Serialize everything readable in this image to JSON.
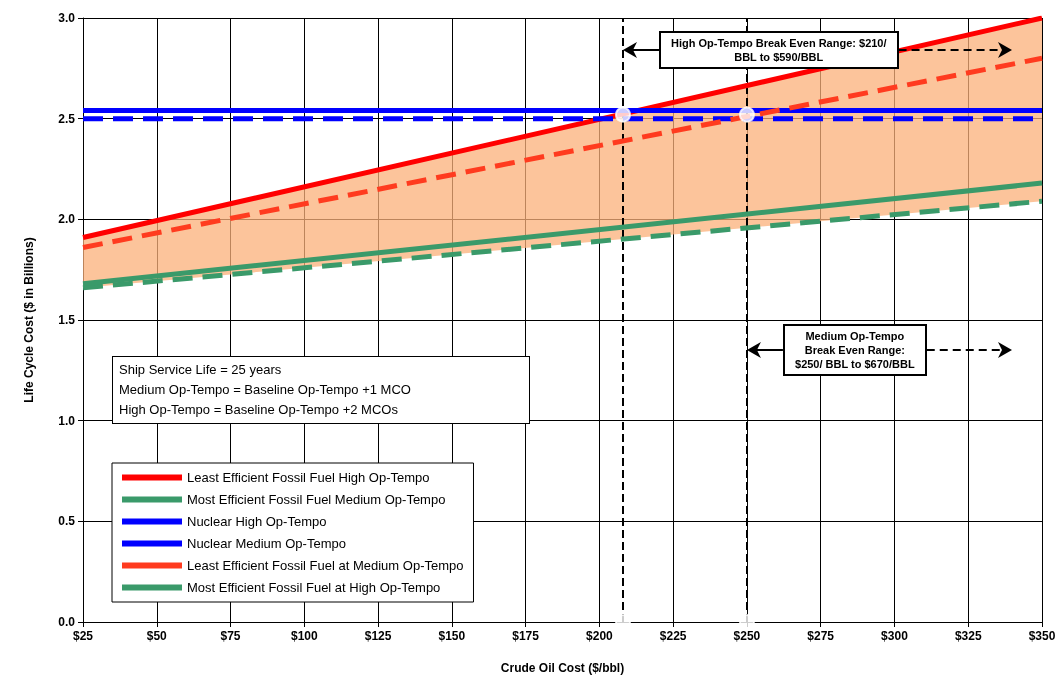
{
  "chart_data": {
    "type": "line",
    "xlabel": "Crude Oil Cost ($/bbl)",
    "ylabel": "Life Cycle Cost ($ in Billions)",
    "xlim": [
      25,
      350
    ],
    "xticks": [
      {
        "value": 25,
        "label": "$25"
      },
      {
        "value": 50,
        "label": "$50"
      },
      {
        "value": 75,
        "label": "$75"
      },
      {
        "value": 100,
        "label": "$100"
      },
      {
        "value": 125,
        "label": "$125"
      },
      {
        "value": 150,
        "label": "$150"
      },
      {
        "value": 175,
        "label": "$175"
      },
      {
        "value": 200,
        "label": "$200"
      },
      {
        "value": 225,
        "label": "$225"
      },
      {
        "value": 250,
        "label": "$250"
      },
      {
        "value": 275,
        "label": "$275"
      },
      {
        "value": 300,
        "label": "$300"
      },
      {
        "value": 325,
        "label": "$325"
      },
      {
        "value": 350,
        "label": "$350"
      }
    ],
    "ylim": [
      0,
      3
    ],
    "yticks": [
      {
        "value": 0,
        "label": "0.0"
      },
      {
        "value": 0.5,
        "label": "0.5"
      },
      {
        "value": 1,
        "label": "1.0"
      },
      {
        "value": 1.5,
        "label": "1.5"
      },
      {
        "value": 2,
        "label": "2.0"
      },
      {
        "value": 2.5,
        "label": "2.5"
      },
      {
        "value": 3,
        "label": "3.0"
      }
    ],
    "grid": true,
    "legend": "bottom left",
    "series": [
      {
        "name": "Least Efficient Fossil Fuel High Op-Tempo",
        "color": "#ff0000",
        "line_style": "solid",
        "x": [
          25,
          350
        ],
        "values": [
          1.91,
          3.0
        ],
        "lower": [
          1.66,
          2.09
        ],
        "upper": [
          1.91,
          3.0
        ]
      },
      {
        "name": "Most Efficient Fossil Fuel Medium Op-Tempo",
        "color": "#3a9a6a",
        "line_style": "dashed",
        "x": [
          25,
          350
        ],
        "values": [
          1.66,
          2.09
        ]
      },
      {
        "name": "Nuclear High Op-Tempo",
        "color": "#0000ff",
        "line_style": "solid",
        "x": [
          25,
          350
        ],
        "values": [
          2.54,
          2.54
        ]
      },
      {
        "name": "Nuclear Medium Op-Tempo",
        "color": "#0000ff",
        "line_style": "dashed",
        "x": [
          25,
          350
        ],
        "values": [
          2.5,
          2.5
        ]
      },
      {
        "name": "Least Efficient Fossil Fuel at Medium Op-Tempo",
        "color": "#ff3b1f",
        "line_style": "dashed",
        "x": [
          25,
          350
        ],
        "values": [
          1.86,
          2.8
        ]
      },
      {
        "name": "Most Efficient Fossil Fuel at High Op-Tempo",
        "color": "#3a9a6a",
        "line_style": "solid",
        "x": [
          25,
          350
        ],
        "values": [
          1.68,
          2.18
        ]
      },
      {
        "type": "scatter",
        "color": "#ffffff",
        "marker": "circle",
        "x": [
          208,
          208,
          250,
          250
        ],
        "values": [
          2.52,
          0,
          2.52,
          0
        ]
      }
    ],
    "ref_lines": [
      {
        "axis": "x",
        "value": 208,
        "color": "#000000",
        "line_style": "dashed"
      },
      {
        "axis": "x",
        "value": 250,
        "color": "#000000",
        "line_style": "dashed"
      }
    ],
    "annotations": [
      "High Op-Tempo Break Even Range: $210/\nBBL to $590/BBL",
      "Medium Op-Tempo\nBreak Even Range:\n$250/ BBL to $670/BBL",
      "Ship Service Life = 25 years\nMedium Op-Tempo = Baseline Op-Tempo +1 MCO\nHigh Op-Tempo = Baseline Op-Tempo +2 MCOs"
    ]
  }
}
